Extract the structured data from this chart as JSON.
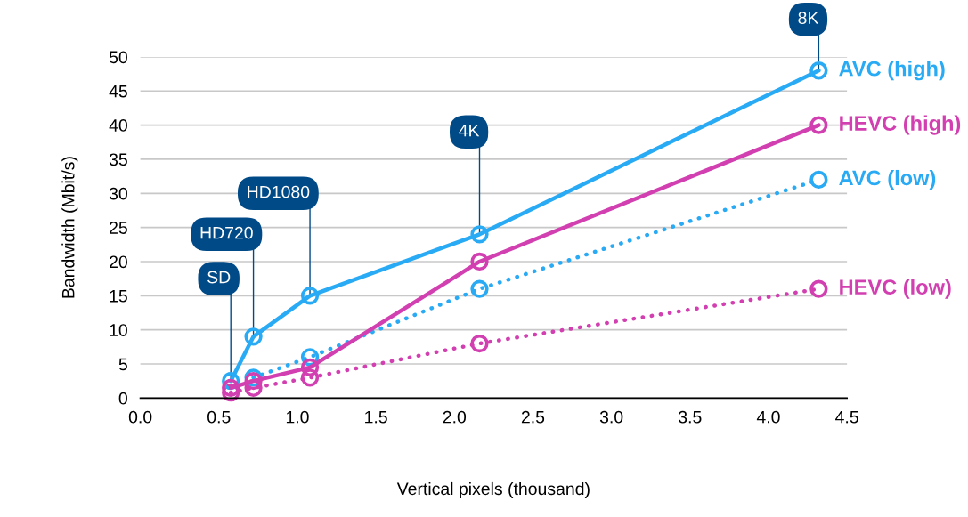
{
  "chart_data": {
    "type": "line",
    "xlabel": "Vertical pixels (thousand)",
    "ylabel": "Bandwidth (Mbit/s)",
    "x": [
      0.576,
      0.72,
      1.08,
      2.16,
      4.32
    ],
    "series": [
      {
        "name": "AVC (high)",
        "color": "#29aaf4",
        "values": [
          2.5,
          9,
          15,
          24,
          48
        ],
        "line_style": "solid"
      },
      {
        "name": "HEVC (high)",
        "color": "#d23fb0",
        "values": [
          1.5,
          2.5,
          4.5,
          20,
          40
        ],
        "line_style": "solid"
      },
      {
        "name": "AVC (low)",
        "color": "#29aaf4",
        "values": [
          null,
          3,
          6,
          16,
          32
        ],
        "line_style": "dotted"
      },
      {
        "name": "HEVC (low)",
        "color": "#d23fb0",
        "values": [
          0.8,
          1.5,
          3,
          8,
          16
        ],
        "line_style": "dotted"
      }
    ],
    "annotations": [
      {
        "text": "SD",
        "x": 0.576,
        "y": 2.5
      },
      {
        "text": "HD720",
        "x": 0.72,
        "y": 9
      },
      {
        "text": "HD1080",
        "x": 1.08,
        "y": 15
      },
      {
        "text": "4K",
        "x": 2.16,
        "y": 24
      },
      {
        "text": "8K",
        "x": 4.32,
        "y": 48
      }
    ],
    "xlim": [
      0,
      4.5
    ],
    "ylim": [
      0,
      50
    ],
    "xticks": [
      {
        "value": 0,
        "label": "0.0"
      },
      {
        "value": 0.5,
        "label": "0.5"
      },
      {
        "value": 1,
        "label": "1.0"
      },
      {
        "value": 1.5,
        "label": "1.5"
      },
      {
        "value": 2,
        "label": "2.0"
      },
      {
        "value": 2.5,
        "label": "2.5"
      },
      {
        "value": 3,
        "label": "3.0"
      },
      {
        "value": 3.5,
        "label": "3.5"
      },
      {
        "value": 4,
        "label": "4.0"
      },
      {
        "value": 4.5,
        "label": "4.5"
      }
    ],
    "yticks": [
      0,
      5,
      10,
      15,
      20,
      25,
      30,
      35,
      40,
      45,
      50
    ],
    "grid": "y",
    "marker": "circle",
    "legend": false
  }
}
